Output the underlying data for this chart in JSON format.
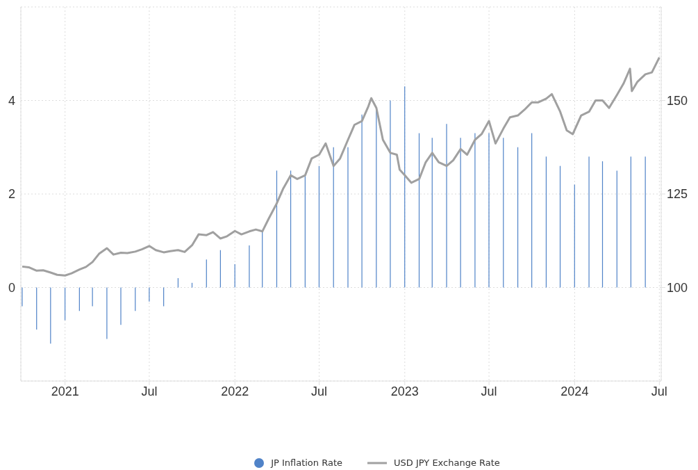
{
  "chart_data": {
    "type": "bar",
    "xlim": [
      "2020-09-28",
      "2024-07-05"
    ],
    "xticks": [
      {
        "value": "2021-01-01",
        "label": "2021"
      },
      {
        "value": "2021-07-01",
        "label": "Jul"
      },
      {
        "value": "2022-01-01",
        "label": "2022"
      },
      {
        "value": "2022-07-01",
        "label": "Jul"
      },
      {
        "value": "2023-01-01",
        "label": "2023"
      },
      {
        "value": "2023-07-01",
        "label": "Jul"
      },
      {
        "value": "2024-01-01",
        "label": "2024"
      },
      {
        "value": "2024-07-01",
        "label": "Jul"
      }
    ],
    "ylim": [
      -2,
      6
    ],
    "yticks": [
      0,
      2,
      4
    ],
    "y2lim": [
      75,
      175
    ],
    "y2ticks": [
      100,
      125,
      150
    ],
    "grid": true,
    "legend": "bottom",
    "series": [
      {
        "name": "JP Inflation Rate",
        "color": "#5083c8",
        "x": [
          "2020-10-01",
          "2020-11-01",
          "2020-12-01",
          "2021-01-01",
          "2021-02-01",
          "2021-03-01",
          "2021-04-01",
          "2021-05-01",
          "2021-06-01",
          "2021-07-01",
          "2021-08-01",
          "2021-09-01",
          "2021-10-01",
          "2021-11-01",
          "2021-12-01",
          "2022-01-01",
          "2022-02-01",
          "2022-03-01",
          "2022-04-01",
          "2022-05-01",
          "2022-06-01",
          "2022-07-01",
          "2022-08-01",
          "2022-09-01",
          "2022-10-01",
          "2022-11-01",
          "2022-12-01",
          "2023-01-01",
          "2023-02-01",
          "2023-03-01",
          "2023-04-01",
          "2023-05-01",
          "2023-06-01",
          "2023-07-01",
          "2023-08-01",
          "2023-09-01",
          "2023-10-01",
          "2023-11-01",
          "2023-12-01",
          "2024-01-01",
          "2024-02-01",
          "2024-03-01",
          "2024-04-01",
          "2024-05-01",
          "2024-06-01"
        ],
        "values": [
          -0.4,
          -0.9,
          -1.2,
          -0.7,
          -0.5,
          -0.4,
          -1.1,
          -0.8,
          -0.5,
          -0.3,
          -0.4,
          0.2,
          0.1,
          0.6,
          0.8,
          0.5,
          0.9,
          1.2,
          2.5,
          2.5,
          2.4,
          2.6,
          3.0,
          3.0,
          3.7,
          3.8,
          4.0,
          4.3,
          3.3,
          3.2,
          3.5,
          3.2,
          3.3,
          3.3,
          3.2,
          3.0,
          3.3,
          2.8,
          2.6,
          2.2,
          2.8,
          2.7,
          2.5,
          2.8,
          2.8
        ]
      },
      {
        "name": "USD JPY Exchange Rate",
        "type": "line",
        "axis": "y2",
        "color": "#a0a0a0",
        "x": [
          "2020-10-01",
          "2020-10-15",
          "2020-11-01",
          "2020-11-15",
          "2020-12-01",
          "2020-12-15",
          "2021-01-01",
          "2021-01-15",
          "2021-02-01",
          "2021-02-15",
          "2021-03-01",
          "2021-03-15",
          "2021-04-01",
          "2021-04-15",
          "2021-05-01",
          "2021-05-15",
          "2021-06-01",
          "2021-06-15",
          "2021-07-01",
          "2021-07-15",
          "2021-08-01",
          "2021-08-15",
          "2021-09-01",
          "2021-09-15",
          "2021-10-01",
          "2021-10-15",
          "2021-11-01",
          "2021-11-15",
          "2021-12-01",
          "2021-12-15",
          "2022-01-01",
          "2022-01-15",
          "2022-02-01",
          "2022-02-15",
          "2022-03-01",
          "2022-03-15",
          "2022-04-01",
          "2022-04-15",
          "2022-05-01",
          "2022-05-15",
          "2022-06-01",
          "2022-06-15",
          "2022-07-01",
          "2022-07-15",
          "2022-08-01",
          "2022-08-15",
          "2022-09-01",
          "2022-09-15",
          "2022-10-01",
          "2022-10-15",
          "2022-10-21",
          "2022-11-01",
          "2022-11-15",
          "2022-12-01",
          "2022-12-15",
          "2022-12-21",
          "2023-01-01",
          "2023-01-15",
          "2023-02-01",
          "2023-02-15",
          "2023-03-01",
          "2023-03-15",
          "2023-04-01",
          "2023-04-15",
          "2023-05-01",
          "2023-05-15",
          "2023-06-01",
          "2023-06-15",
          "2023-07-01",
          "2023-07-15",
          "2023-08-01",
          "2023-08-15",
          "2023-09-01",
          "2023-09-15",
          "2023-10-01",
          "2023-10-15",
          "2023-11-01",
          "2023-11-13",
          "2023-12-01",
          "2023-12-15",
          "2023-12-28",
          "2024-01-15",
          "2024-02-01",
          "2024-02-15",
          "2024-03-01",
          "2024-03-15",
          "2024-04-01",
          "2024-04-15",
          "2024-04-29",
          "2024-05-03",
          "2024-05-15",
          "2024-06-01",
          "2024-06-15",
          "2024-07-01"
        ],
        "values": [
          105.6,
          105.4,
          104.5,
          104.6,
          104.0,
          103.4,
          103.2,
          103.8,
          104.8,
          105.5,
          106.8,
          109.0,
          110.5,
          108.8,
          109.3,
          109.2,
          109.6,
          110.2,
          111.1,
          110.0,
          109.4,
          109.7,
          110.0,
          109.5,
          111.3,
          114.2,
          114.0,
          114.8,
          113.1,
          113.7,
          115.1,
          114.2,
          115.0,
          115.5,
          115.0,
          118.5,
          122.5,
          126.5,
          130.0,
          129.0,
          130.0,
          134.5,
          135.5,
          138.5,
          132.5,
          134.5,
          139.5,
          143.5,
          144.5,
          148.5,
          150.6,
          148.0,
          139.5,
          136.0,
          135.5,
          131.5,
          130.0,
          128.0,
          129.0,
          133.5,
          136.0,
          133.5,
          132.5,
          134.0,
          137.0,
          135.5,
          139.5,
          141.0,
          144.5,
          138.5,
          142.5,
          145.5,
          146.0,
          147.5,
          149.5,
          149.5,
          150.5,
          151.7,
          147.0,
          142.0,
          141.0,
          146.0,
          147.0,
          150.0,
          150.0,
          148.0,
          151.5,
          154.5,
          158.5,
          152.5,
          155.0,
          157.0,
          157.5,
          161.5
        ]
      }
    ]
  }
}
